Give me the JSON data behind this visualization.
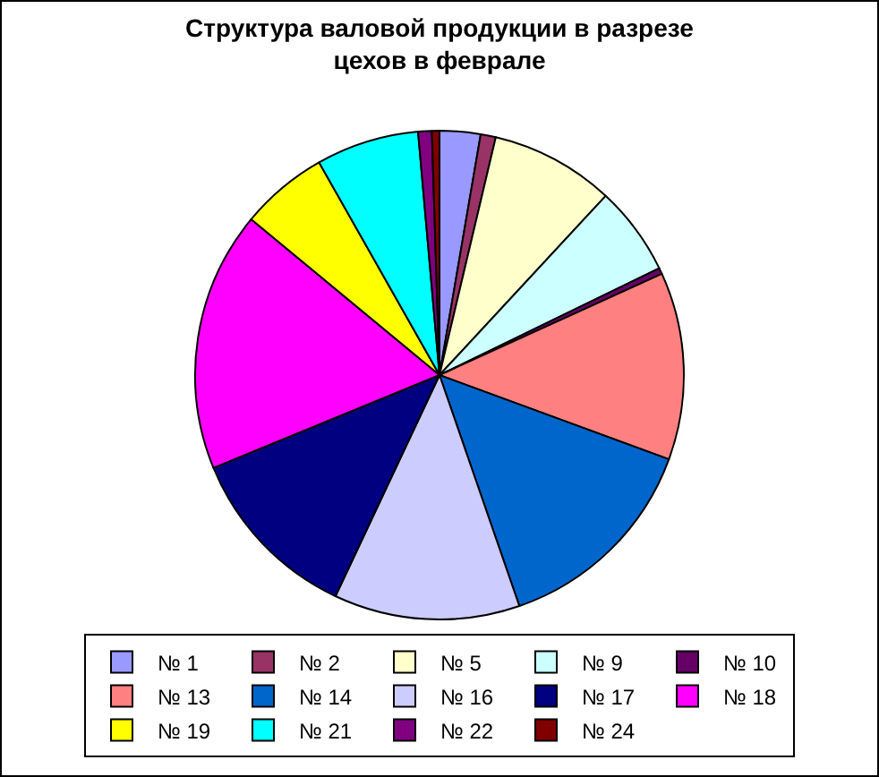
{
  "chart_data": {
    "type": "pie",
    "title": "Структура валовой продукции в разрезе\nцехов в феврале",
    "categories": [
      "№ 1",
      "№ 2",
      "№ 5",
      "№ 9",
      "№ 10",
      "№ 13",
      "№ 14",
      "№ 16",
      "№ 17",
      "№ 18",
      "№ 19",
      "№ 21",
      "№ 22",
      "№ 24"
    ],
    "values": [
      2.7,
      1,
      8.2,
      5.9,
      0.4,
      12.4,
      14.1,
      12.3,
      11.8,
      17.2,
      5.8,
      6.8,
      0.9,
      0.5
    ],
    "colors": [
      "#9999ff",
      "#993366",
      "#ffffcc",
      "#ccffff",
      "#660066",
      "#ff8080",
      "#0066cc",
      "#ccccff",
      "#000080",
      "#ff00ff",
      "#ffff00",
      "#00ffff",
      "#800080",
      "#800000"
    ],
    "legend": "bottom"
  }
}
